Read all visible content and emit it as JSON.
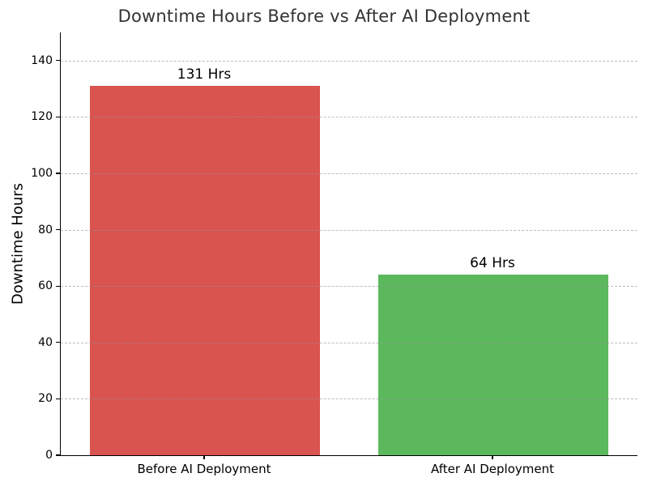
{
  "chart_data": {
    "type": "bar",
    "title": "Downtime Hours Before vs After AI Deployment",
    "xlabel": "",
    "ylabel": "Downtime Hours",
    "categories": [
      "Before AI Deployment",
      "After AI Deployment"
    ],
    "values": [
      131,
      64
    ],
    "value_labels": [
      "131 Hrs",
      "64 Hrs"
    ],
    "bar_colors": [
      "#d9534f",
      "#5cb85c"
    ],
    "ylim": [
      0,
      150
    ],
    "yticks": [
      0,
      20,
      40,
      60,
      80,
      100,
      120,
      140
    ],
    "grid": "horizontal-dashed",
    "legend": "none"
  },
  "colors": {
    "title_text": "#333333",
    "axis_text": "#000000",
    "spine": "#000000",
    "gridline": "#c8c8c8",
    "background": "#ffffff",
    "bar_before": "#d9534f",
    "bar_after": "#5cb85c"
  }
}
